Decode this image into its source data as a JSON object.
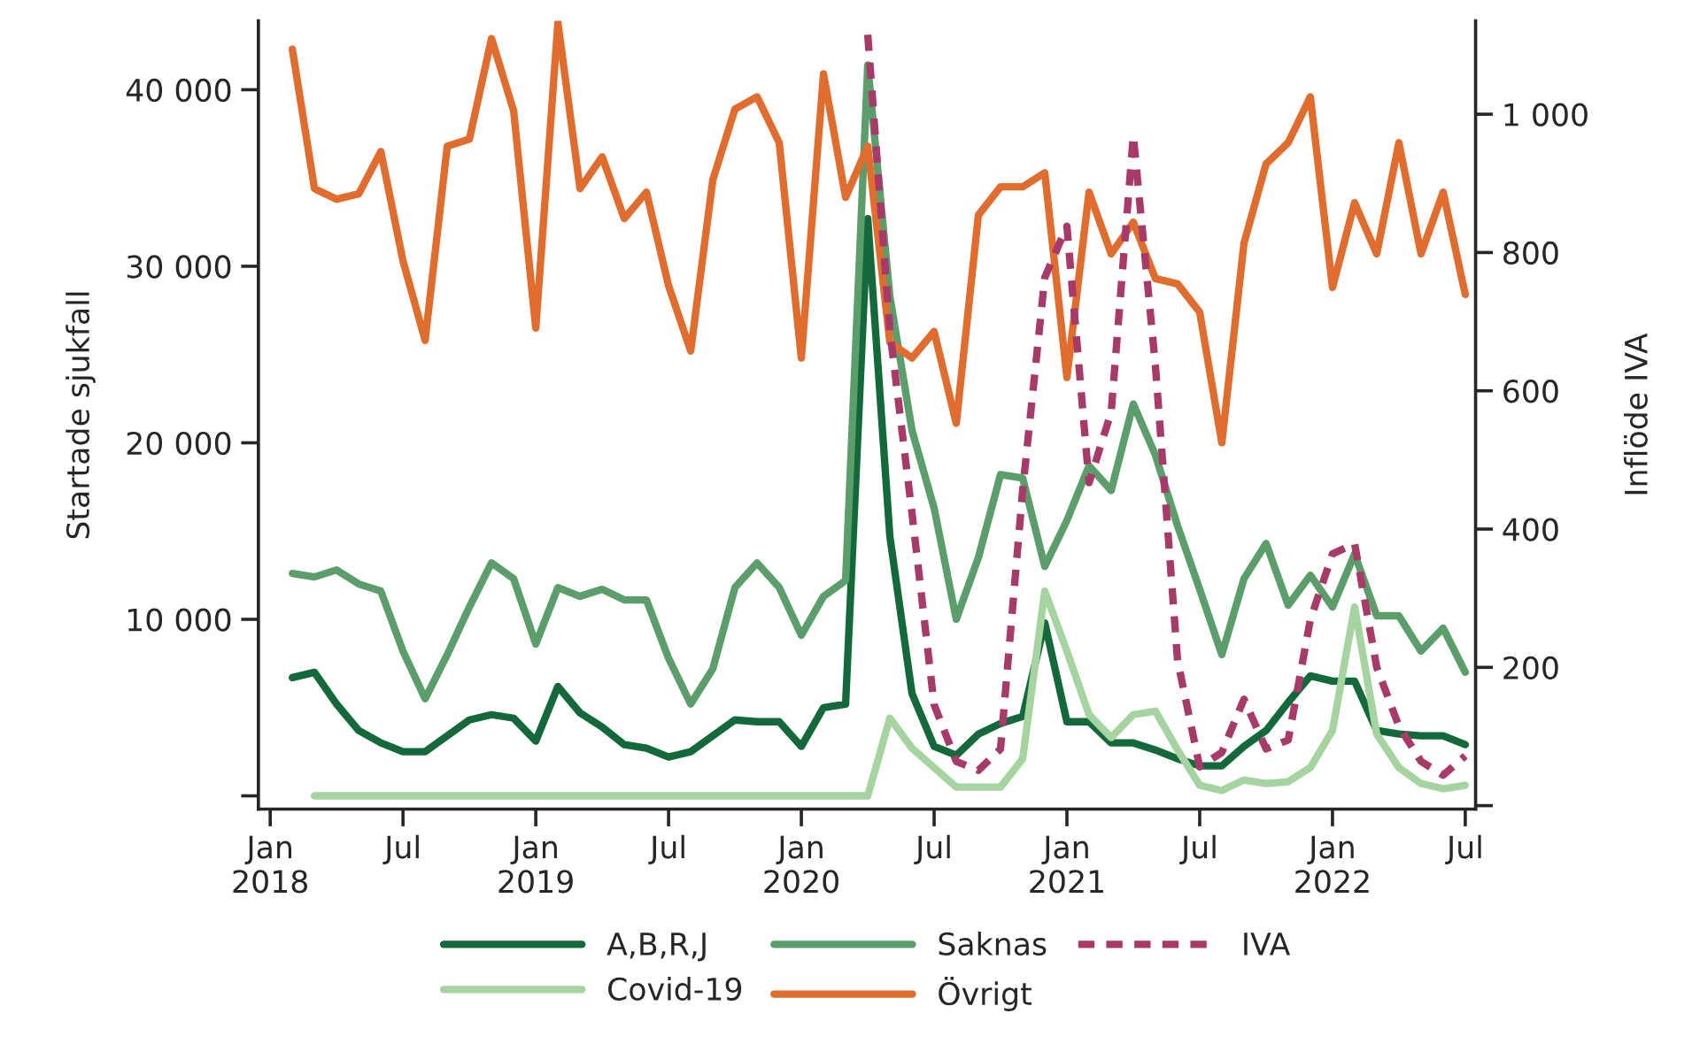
{
  "chart_data": {
    "type": "line",
    "x": [
      "2018-02",
      "2018-03",
      "2018-04",
      "2018-05",
      "2018-06",
      "2018-07",
      "2018-08",
      "2018-09",
      "2018-10",
      "2018-11",
      "2018-12",
      "2019-01",
      "2019-02",
      "2019-03",
      "2019-04",
      "2019-05",
      "2019-06",
      "2019-07",
      "2019-08",
      "2019-09",
      "2019-10",
      "2019-11",
      "2019-12",
      "2020-01",
      "2020-02",
      "2020-03",
      "2020-04",
      "2020-05",
      "2020-06",
      "2020-07",
      "2020-08",
      "2020-09",
      "2020-10",
      "2020-11",
      "2020-12",
      "2021-01",
      "2021-02",
      "2021-03",
      "2021-04",
      "2021-05",
      "2021-06",
      "2021-07",
      "2021-08",
      "2021-09",
      "2021-10",
      "2021-11",
      "2021-12",
      "2022-01",
      "2022-02",
      "2022-03",
      "2022-04",
      "2022-05",
      "2022-06",
      "2022-07"
    ],
    "series": [
      {
        "name": "A,B,R,J",
        "color": "#13693a",
        "values": [
          6700,
          7000,
          5200,
          3700,
          3000,
          2500,
          2500,
          3400,
          4300,
          4600,
          4400,
          3100,
          6200,
          4700,
          3900,
          2900,
          2700,
          2200,
          2500,
          3400,
          4300,
          4200,
          4200,
          2800,
          5000,
          5200,
          32700,
          14700,
          5800,
          2800,
          2300,
          3500,
          4100,
          4500,
          9800,
          4200,
          4200,
          3000,
          3000,
          2600,
          2100,
          1700,
          1700,
          2800,
          3700,
          5300,
          6800,
          6500,
          6500,
          3700,
          3500,
          3400,
          3400,
          2900
        ]
      },
      {
        "name": "Covid-19",
        "color": "#a6d4a0",
        "values": [
          null,
          0,
          0,
          0,
          0,
          0,
          0,
          0,
          0,
          0,
          0,
          0,
          0,
          0,
          0,
          0,
          0,
          0,
          0,
          0,
          0,
          0,
          0,
          0,
          0,
          0,
          0,
          4400,
          2700,
          1600,
          500,
          500,
          500,
          2100,
          11600,
          8200,
          4600,
          3300,
          4600,
          4800,
          2600,
          600,
          300,
          900,
          700,
          800,
          1600,
          3700,
          10700,
          3500,
          1600,
          700,
          400,
          600
        ]
      },
      {
        "name": "Saknas",
        "color": "#5c9e6b",
        "values": [
          12600,
          12400,
          12800,
          12000,
          11600,
          8200,
          5500,
          8000,
          10700,
          13200,
          12300,
          8600,
          11800,
          11300,
          11700,
          11100,
          11100,
          7800,
          5200,
          7200,
          11800,
          13200,
          11800,
          9100,
          11300,
          12200,
          41400,
          28300,
          20700,
          16300,
          10000,
          13500,
          18200,
          18000,
          13000,
          15600,
          18700,
          17300,
          22200,
          19300,
          15300,
          11700,
          8000,
          12300,
          14300,
          10800,
          12500,
          10700,
          13700,
          10200,
          10200,
          8200,
          9500,
          7000
        ]
      },
      {
        "name": "Övrigt",
        "color": "#e06c2e",
        "values": [
          42300,
          34400,
          33800,
          34100,
          36500,
          30300,
          25800,
          36800,
          37200,
          42900,
          38800,
          26500,
          43800,
          34400,
          36200,
          32700,
          34200,
          28900,
          25200,
          34900,
          38900,
          39600,
          37000,
          24800,
          40900,
          33900,
          36800,
          25700,
          24800,
          26300,
          21100,
          32900,
          34500,
          34500,
          35300,
          23700,
          34200,
          30700,
          32500,
          29300,
          29000,
          27400,
          20000,
          31300,
          35800,
          37000,
          39600,
          28800,
          33600,
          30700,
          37000,
          30700,
          34200,
          28400
        ]
      },
      {
        "name": "IVA",
        "color": "#a83a6a",
        "axis": "y2",
        "line_style": "dashed",
        "values": [
          null,
          null,
          null,
          null,
          null,
          null,
          null,
          null,
          null,
          null,
          null,
          null,
          null,
          null,
          null,
          null,
          null,
          null,
          null,
          null,
          null,
          null,
          null,
          null,
          null,
          null,
          1115,
          687,
          423,
          146,
          64,
          51,
          82,
          456,
          764,
          838,
          467,
          569,
          969,
          636,
          210,
          56,
          77,
          154,
          82,
          95,
          269,
          364,
          379,
          200,
          115,
          64,
          44,
          72
        ]
      }
    ],
    "ylabel": "Startade sjukfall",
    "y2label": "Inflöde IVA",
    "xlim": [
      "2017-12-15",
      "2022-07-15"
    ],
    "xticks": [
      {
        "value": "2018-01",
        "label": "Jan\n2018"
      },
      {
        "value": "2018-07",
        "label": "Jul"
      },
      {
        "value": "2019-01",
        "label": "Jan\n2019"
      },
      {
        "value": "2019-07",
        "label": "Jul"
      },
      {
        "value": "2020-01",
        "label": "Jan\n2020"
      },
      {
        "value": "2020-07",
        "label": "Jul"
      },
      {
        "value": "2021-01",
        "label": "Jan\n2021"
      },
      {
        "value": "2021-07",
        "label": "Jul"
      },
      {
        "value": "2022-01",
        "label": "Jan\n2022"
      },
      {
        "value": "2022-07",
        "label": "Jul"
      }
    ],
    "ylim": [
      -750,
      43900
    ],
    "yticks": [
      {
        "value": 0,
        "label": null
      },
      {
        "value": 10000,
        "label": "10 000"
      },
      {
        "value": 20000,
        "label": "20 000"
      },
      {
        "value": 30000,
        "label": "30 000"
      },
      {
        "value": 40000,
        "label": "40 000"
      }
    ],
    "y2lim": [
      -5,
      1135
    ],
    "y2ticks": [
      {
        "value": 0,
        "label": null
      },
      200,
      400,
      600,
      800,
      {
        "value": 1000,
        "label": "1 000"
      }
    ],
    "legend": "bottom",
    "grid": false
  }
}
